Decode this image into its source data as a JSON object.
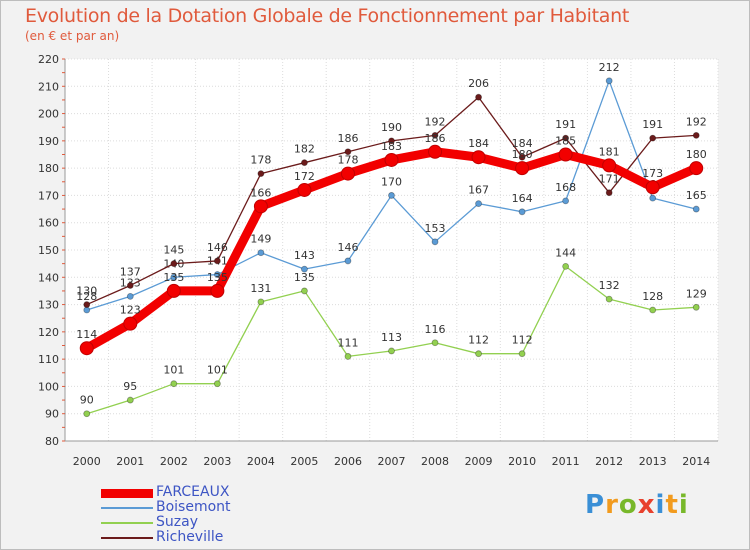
{
  "title": "Evolution de la Dotation Globale de Fonctionnement par Habitant",
  "subtitle": "(en € et par an)",
  "logo": {
    "letters": [
      "P",
      "r",
      "o",
      "x",
      "i",
      "t",
      "i"
    ],
    "colors": [
      "#3a8fd6",
      "#f29b1e",
      "#78b82a",
      "#e8412d",
      "#3a8fd6",
      "#f29b1e",
      "#78b82a"
    ]
  },
  "chart_data": {
    "type": "line",
    "title": "Evolution de la Dotation Globale de Fonctionnement par Habitant",
    "subtitle": "(en € et par an)",
    "x": [
      "2000",
      "2001",
      "2002",
      "2003",
      "2004",
      "2005",
      "2006",
      "2007",
      "2008",
      "2009",
      "2010",
      "2011",
      "2012",
      "2013",
      "2014"
    ],
    "ylim": [
      80,
      220
    ],
    "yticks": [
      80,
      90,
      100,
      110,
      120,
      130,
      140,
      150,
      160,
      170,
      180,
      190,
      200,
      210,
      220
    ],
    "grid": true,
    "legend_position": "bottom-left",
    "series": [
      {
        "name": "FARCEAUX",
        "color": "#f20000",
        "values": [
          114,
          123,
          135,
          135,
          166,
          172,
          178,
          183,
          186,
          184,
          180,
          185,
          181,
          173,
          180
        ]
      },
      {
        "name": "Boisemont",
        "color": "#5b9bd5",
        "values": [
          128,
          133,
          140,
          141,
          149,
          143,
          146,
          170,
          153,
          167,
          164,
          168,
          212,
          169,
          165
        ]
      },
      {
        "name": "Suzay",
        "color": "#92d050",
        "values": [
          90,
          95,
          101,
          101,
          131,
          135,
          111,
          113,
          116,
          112,
          112,
          144,
          132,
          128,
          129
        ]
      },
      {
        "name": "Richeville",
        "color": "#6b1b1b",
        "values": [
          130,
          137,
          145,
          146,
          178,
          182,
          186,
          190,
          192,
          206,
          184,
          191,
          171,
          191,
          192
        ]
      }
    ]
  }
}
